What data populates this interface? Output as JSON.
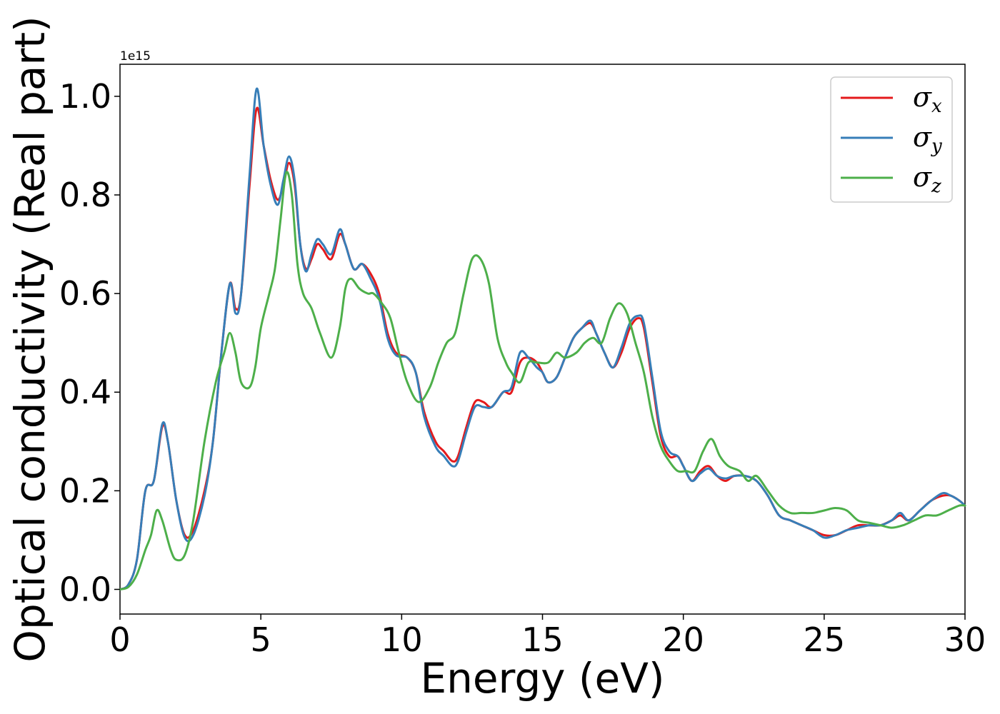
{
  "chart_data": {
    "type": "line",
    "title": "",
    "xlabel": "Energy (eV)",
    "ylabel": "Optical conductivity (Real part)",
    "y_offset_label": "1e15",
    "xlim": [
      0,
      30
    ],
    "ylim": [
      -0.05,
      1.065
    ],
    "xticks": [
      0,
      5,
      10,
      15,
      20,
      25,
      30
    ],
    "yticks": [
      0.0,
      0.2,
      0.4,
      0.6,
      0.8,
      1.0
    ],
    "xtick_labels": [
      "0",
      "5",
      "10",
      "15",
      "20",
      "25",
      "30"
    ],
    "ytick_labels": [
      "0.0",
      "0.2",
      "0.4",
      "0.6",
      "0.8",
      "1.0"
    ],
    "grid": false,
    "legend_position": "top-right",
    "series": [
      {
        "name": "σx",
        "symbol": "σ",
        "subscript": "x",
        "color": "#e41a1c",
        "points": [
          [
            0,
            0
          ],
          [
            0.3,
            0.01
          ],
          [
            0.6,
            0.06
          ],
          [
            0.9,
            0.2
          ],
          [
            1.2,
            0.22
          ],
          [
            1.5,
            0.33
          ],
          [
            1.7,
            0.3
          ],
          [
            2.0,
            0.18
          ],
          [
            2.3,
            0.11
          ],
          [
            2.6,
            0.12
          ],
          [
            3.0,
            0.2
          ],
          [
            3.3,
            0.3
          ],
          [
            3.6,
            0.48
          ],
          [
            3.9,
            0.62
          ],
          [
            4.1,
            0.57
          ],
          [
            4.3,
            0.6
          ],
          [
            4.6,
            0.82
          ],
          [
            4.85,
            0.975
          ],
          [
            5.1,
            0.9
          ],
          [
            5.35,
            0.83
          ],
          [
            5.6,
            0.79
          ],
          [
            5.8,
            0.82
          ],
          [
            6.0,
            0.865
          ],
          [
            6.2,
            0.82
          ],
          [
            6.4,
            0.7
          ],
          [
            6.6,
            0.65
          ],
          [
            6.8,
            0.67
          ],
          [
            7.0,
            0.7
          ],
          [
            7.2,
            0.69
          ],
          [
            7.5,
            0.67
          ],
          [
            7.8,
            0.72
          ],
          [
            8.0,
            0.7
          ],
          [
            8.3,
            0.65
          ],
          [
            8.6,
            0.66
          ],
          [
            8.9,
            0.64
          ],
          [
            9.2,
            0.6
          ],
          [
            9.5,
            0.52
          ],
          [
            9.8,
            0.48
          ],
          [
            10.2,
            0.47
          ],
          [
            10.5,
            0.44
          ],
          [
            10.8,
            0.36
          ],
          [
            11.2,
            0.3
          ],
          [
            11.5,
            0.28
          ],
          [
            11.8,
            0.26
          ],
          [
            12.0,
            0.27
          ],
          [
            12.3,
            0.33
          ],
          [
            12.6,
            0.38
          ],
          [
            12.9,
            0.38
          ],
          [
            13.2,
            0.37
          ],
          [
            13.6,
            0.4
          ],
          [
            13.9,
            0.4
          ],
          [
            14.2,
            0.46
          ],
          [
            14.5,
            0.47
          ],
          [
            14.8,
            0.46
          ],
          [
            15.0,
            0.44
          ],
          [
            15.2,
            0.42
          ],
          [
            15.5,
            0.43
          ],
          [
            15.8,
            0.47
          ],
          [
            16.1,
            0.51
          ],
          [
            16.4,
            0.53
          ],
          [
            16.7,
            0.54
          ],
          [
            16.9,
            0.52
          ],
          [
            17.2,
            0.48
          ],
          [
            17.5,
            0.45
          ],
          [
            17.8,
            0.48
          ],
          [
            18.1,
            0.53
          ],
          [
            18.4,
            0.55
          ],
          [
            18.6,
            0.53
          ],
          [
            18.9,
            0.42
          ],
          [
            19.2,
            0.31
          ],
          [
            19.5,
            0.27
          ],
          [
            19.8,
            0.27
          ],
          [
            20.0,
            0.25
          ],
          [
            20.3,
            0.22
          ],
          [
            20.6,
            0.24
          ],
          [
            20.9,
            0.25
          ],
          [
            21.2,
            0.23
          ],
          [
            21.5,
            0.22
          ],
          [
            21.8,
            0.23
          ],
          [
            22.2,
            0.23
          ],
          [
            22.6,
            0.22
          ],
          [
            23.0,
            0.19
          ],
          [
            23.4,
            0.15
          ],
          [
            23.8,
            0.14
          ],
          [
            24.2,
            0.13
          ],
          [
            24.6,
            0.12
          ],
          [
            25.0,
            0.11
          ],
          [
            25.4,
            0.11
          ],
          [
            25.8,
            0.12
          ],
          [
            26.2,
            0.13
          ],
          [
            26.6,
            0.13
          ],
          [
            27.0,
            0.13
          ],
          [
            27.4,
            0.14
          ],
          [
            27.7,
            0.15
          ],
          [
            28.0,
            0.14
          ],
          [
            28.4,
            0.16
          ],
          [
            28.8,
            0.18
          ],
          [
            29.2,
            0.19
          ],
          [
            29.5,
            0.19
          ],
          [
            29.8,
            0.18
          ],
          [
            30,
            0.17
          ]
        ]
      },
      {
        "name": "σy",
        "symbol": "σ",
        "subscript": "y",
        "color": "#377eb8",
        "points": [
          [
            0,
            0
          ],
          [
            0.3,
            0.01
          ],
          [
            0.6,
            0.06
          ],
          [
            0.9,
            0.2
          ],
          [
            1.2,
            0.22
          ],
          [
            1.5,
            0.335
          ],
          [
            1.7,
            0.3
          ],
          [
            2.0,
            0.18
          ],
          [
            2.3,
            0.105
          ],
          [
            2.6,
            0.11
          ],
          [
            3.0,
            0.19
          ],
          [
            3.3,
            0.3
          ],
          [
            3.6,
            0.48
          ],
          [
            3.9,
            0.62
          ],
          [
            4.1,
            0.56
          ],
          [
            4.3,
            0.6
          ],
          [
            4.6,
            0.84
          ],
          [
            4.85,
            1.015
          ],
          [
            5.1,
            0.9
          ],
          [
            5.35,
            0.82
          ],
          [
            5.6,
            0.78
          ],
          [
            5.8,
            0.83
          ],
          [
            6.0,
            0.878
          ],
          [
            6.2,
            0.83
          ],
          [
            6.4,
            0.7
          ],
          [
            6.6,
            0.645
          ],
          [
            6.8,
            0.68
          ],
          [
            7.0,
            0.71
          ],
          [
            7.2,
            0.7
          ],
          [
            7.5,
            0.68
          ],
          [
            7.8,
            0.73
          ],
          [
            8.0,
            0.7
          ],
          [
            8.3,
            0.65
          ],
          [
            8.6,
            0.66
          ],
          [
            8.9,
            0.63
          ],
          [
            9.2,
            0.59
          ],
          [
            9.5,
            0.51
          ],
          [
            9.8,
            0.475
          ],
          [
            10.2,
            0.47
          ],
          [
            10.5,
            0.44
          ],
          [
            10.8,
            0.35
          ],
          [
            11.2,
            0.29
          ],
          [
            11.5,
            0.27
          ],
          [
            11.8,
            0.25
          ],
          [
            12.0,
            0.26
          ],
          [
            12.3,
            0.32
          ],
          [
            12.6,
            0.37
          ],
          [
            12.9,
            0.37
          ],
          [
            13.2,
            0.37
          ],
          [
            13.6,
            0.4
          ],
          [
            13.9,
            0.41
          ],
          [
            14.2,
            0.48
          ],
          [
            14.5,
            0.47
          ],
          [
            14.8,
            0.45
          ],
          [
            15.0,
            0.44
          ],
          [
            15.2,
            0.42
          ],
          [
            15.5,
            0.43
          ],
          [
            15.8,
            0.47
          ],
          [
            16.1,
            0.51
          ],
          [
            16.4,
            0.53
          ],
          [
            16.7,
            0.545
          ],
          [
            16.9,
            0.52
          ],
          [
            17.2,
            0.48
          ],
          [
            17.5,
            0.45
          ],
          [
            17.8,
            0.49
          ],
          [
            18.1,
            0.54
          ],
          [
            18.4,
            0.555
          ],
          [
            18.6,
            0.54
          ],
          [
            18.9,
            0.43
          ],
          [
            19.2,
            0.32
          ],
          [
            19.5,
            0.28
          ],
          [
            19.8,
            0.27
          ],
          [
            20.0,
            0.25
          ],
          [
            20.3,
            0.22
          ],
          [
            20.6,
            0.235
          ],
          [
            20.9,
            0.245
          ],
          [
            21.2,
            0.23
          ],
          [
            21.5,
            0.225
          ],
          [
            21.8,
            0.23
          ],
          [
            22.2,
            0.23
          ],
          [
            22.6,
            0.22
          ],
          [
            23.0,
            0.19
          ],
          [
            23.4,
            0.15
          ],
          [
            23.8,
            0.14
          ],
          [
            24.2,
            0.13
          ],
          [
            24.6,
            0.12
          ],
          [
            25.0,
            0.105
          ],
          [
            25.4,
            0.11
          ],
          [
            25.8,
            0.12
          ],
          [
            26.2,
            0.125
          ],
          [
            26.6,
            0.13
          ],
          [
            27.0,
            0.13
          ],
          [
            27.4,
            0.14
          ],
          [
            27.7,
            0.155
          ],
          [
            28.0,
            0.14
          ],
          [
            28.4,
            0.16
          ],
          [
            28.8,
            0.18
          ],
          [
            29.2,
            0.195
          ],
          [
            29.5,
            0.19
          ],
          [
            29.8,
            0.18
          ],
          [
            30,
            0.17
          ]
        ]
      },
      {
        "name": "σz",
        "symbol": "σ",
        "subscript": "z",
        "color": "#4daf4a",
        "points": [
          [
            0,
            0
          ],
          [
            0.3,
            0.005
          ],
          [
            0.6,
            0.03
          ],
          [
            0.9,
            0.08
          ],
          [
            1.1,
            0.11
          ],
          [
            1.3,
            0.16
          ],
          [
            1.5,
            0.14
          ],
          [
            1.8,
            0.08
          ],
          [
            2.0,
            0.06
          ],
          [
            2.3,
            0.07
          ],
          [
            2.6,
            0.14
          ],
          [
            3.0,
            0.3
          ],
          [
            3.4,
            0.42
          ],
          [
            3.7,
            0.48
          ],
          [
            3.9,
            0.52
          ],
          [
            4.1,
            0.48
          ],
          [
            4.3,
            0.42
          ],
          [
            4.6,
            0.41
          ],
          [
            4.8,
            0.45
          ],
          [
            5.0,
            0.53
          ],
          [
            5.3,
            0.6
          ],
          [
            5.5,
            0.65
          ],
          [
            5.7,
            0.75
          ],
          [
            5.9,
            0.845
          ],
          [
            6.1,
            0.8
          ],
          [
            6.3,
            0.66
          ],
          [
            6.5,
            0.6
          ],
          [
            6.8,
            0.57
          ],
          [
            7.1,
            0.52
          ],
          [
            7.5,
            0.47
          ],
          [
            7.8,
            0.53
          ],
          [
            8.0,
            0.61
          ],
          [
            8.2,
            0.63
          ],
          [
            8.5,
            0.61
          ],
          [
            8.8,
            0.6
          ],
          [
            9.0,
            0.6
          ],
          [
            9.3,
            0.58
          ],
          [
            9.6,
            0.55
          ],
          [
            9.9,
            0.48
          ],
          [
            10.2,
            0.42
          ],
          [
            10.6,
            0.38
          ],
          [
            11.0,
            0.41
          ],
          [
            11.3,
            0.46
          ],
          [
            11.6,
            0.5
          ],
          [
            11.9,
            0.52
          ],
          [
            12.2,
            0.6
          ],
          [
            12.5,
            0.67
          ],
          [
            12.8,
            0.67
          ],
          [
            13.1,
            0.62
          ],
          [
            13.4,
            0.51
          ],
          [
            13.7,
            0.46
          ],
          [
            13.9,
            0.44
          ],
          [
            14.2,
            0.42
          ],
          [
            14.5,
            0.46
          ],
          [
            14.8,
            0.46
          ],
          [
            15.2,
            0.46
          ],
          [
            15.5,
            0.48
          ],
          [
            15.8,
            0.47
          ],
          [
            16.2,
            0.48
          ],
          [
            16.5,
            0.5
          ],
          [
            16.8,
            0.51
          ],
          [
            17.1,
            0.5
          ],
          [
            17.4,
            0.55
          ],
          [
            17.7,
            0.58
          ],
          [
            18.0,
            0.56
          ],
          [
            18.3,
            0.5
          ],
          [
            18.6,
            0.44
          ],
          [
            18.9,
            0.35
          ],
          [
            19.2,
            0.29
          ],
          [
            19.5,
            0.26
          ],
          [
            19.8,
            0.24
          ],
          [
            20.1,
            0.24
          ],
          [
            20.4,
            0.24
          ],
          [
            20.7,
            0.28
          ],
          [
            21.0,
            0.305
          ],
          [
            21.3,
            0.27
          ],
          [
            21.6,
            0.25
          ],
          [
            22.0,
            0.24
          ],
          [
            22.3,
            0.22
          ],
          [
            22.6,
            0.23
          ],
          [
            23.0,
            0.2
          ],
          [
            23.4,
            0.17
          ],
          [
            23.8,
            0.155
          ],
          [
            24.2,
            0.155
          ],
          [
            24.6,
            0.155
          ],
          [
            25.0,
            0.16
          ],
          [
            25.4,
            0.165
          ],
          [
            25.8,
            0.16
          ],
          [
            26.2,
            0.14
          ],
          [
            26.6,
            0.135
          ],
          [
            27.0,
            0.13
          ],
          [
            27.4,
            0.125
          ],
          [
            27.8,
            0.13
          ],
          [
            28.2,
            0.14
          ],
          [
            28.6,
            0.15
          ],
          [
            29.0,
            0.15
          ],
          [
            29.4,
            0.16
          ],
          [
            29.8,
            0.17
          ],
          [
            30,
            0.17
          ]
        ]
      }
    ]
  }
}
